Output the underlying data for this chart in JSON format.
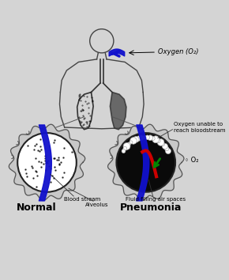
{
  "bg_color": "#d4d4d4",
  "normal_label": "Normal",
  "pneumonia_label": "Pneumonia",
  "oxygen_label": "Oxygen (O₂)",
  "bloodstream_label": "Blood stream",
  "alveolus_label": "Alveolus",
  "fluid_label": "Fluid filling air spaces",
  "o2_label": "◦ O₂",
  "unable_label": "Oxygen unable to\nreach bloodstream"
}
